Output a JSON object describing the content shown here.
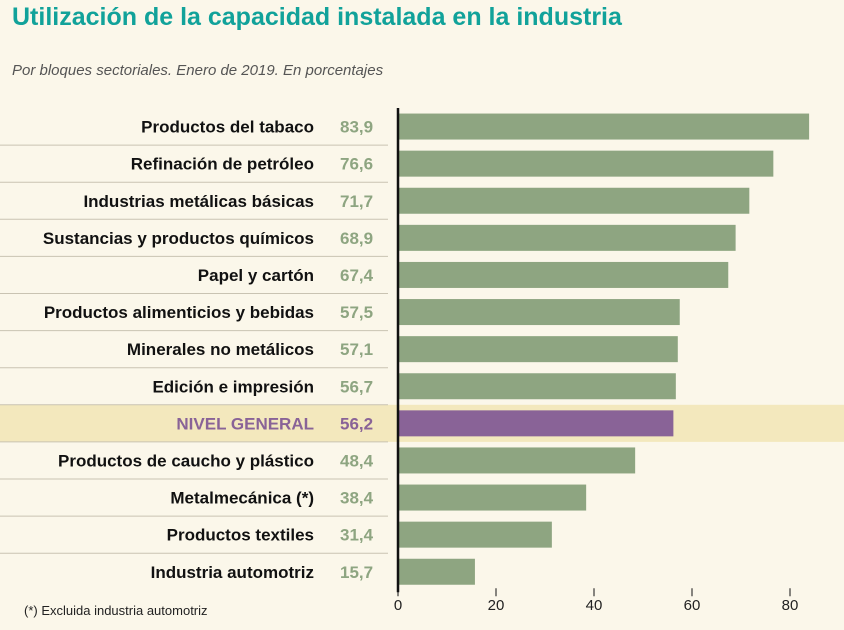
{
  "colors": {
    "title": "#11a29a",
    "bar": "#8ea581",
    "highlight_bar": "#896397",
    "highlight_row": "#f3e8bd",
    "label": "#111111",
    "highlight_label": "#896397",
    "value": "#8ea581",
    "row_line": "#c9c3b2",
    "background": "#fbf7ea"
  },
  "chart_data": {
    "type": "bar",
    "orientation": "horizontal",
    "title": "Utilización de la capacidad instalada en la industria",
    "subtitle": "Por bloques sectoriales. Enero de 2019. En porcentajes",
    "categories": [
      "Productos del tabaco",
      "Refinación de petróleo",
      "Industrias metálicas básicas",
      "Sustancias y productos químicos",
      "Papel y cartón",
      "Productos alimenticios y bebidas",
      "Minerales no metálicos",
      "Edición e impresión",
      "NIVEL GENERAL",
      "Productos de caucho y plástico",
      "Metalmecánica (*)",
      "Productos textiles",
      "Industria automotriz"
    ],
    "values": [
      83.9,
      76.6,
      71.7,
      68.9,
      67.4,
      57.5,
      57.1,
      56.7,
      56.2,
      48.4,
      38.4,
      31.4,
      15.7
    ],
    "value_labels": [
      "83,9",
      "76,6",
      "71,7",
      "68,9",
      "67,4",
      "57,5",
      "57,1",
      "56,7",
      "56,2",
      "48,4",
      "38,4",
      "31,4",
      "15,7"
    ],
    "highlight": "NIVEL GENERAL",
    "xticks": [
      0,
      20,
      40,
      60,
      80
    ],
    "xlim": [
      0,
      85
    ],
    "xlabel": "",
    "ylabel": "",
    "grid": false,
    "footnote": "(*) Excluida industria automotriz"
  }
}
